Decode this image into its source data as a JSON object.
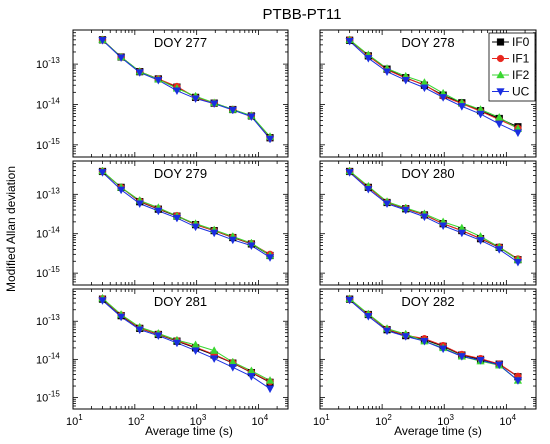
{
  "chart_data": {
    "type": "line",
    "title": "PTBB-PT11",
    "xlabel": "Average time (s)",
    "ylabel": "Modified Allan deviation",
    "xscale": "log",
    "yscale": "log",
    "xlim": [
      10,
      30000
    ],
    "ylim": [
      5e-16,
      7e-13
    ],
    "x_ticks": [
      {
        "base": "10",
        "exp": "1",
        "value": 10
      },
      {
        "base": "10",
        "exp": "2",
        "value": 100
      },
      {
        "base": "10",
        "exp": "3",
        "value": 1000
      },
      {
        "base": "10",
        "exp": "4",
        "value": 10000
      }
    ],
    "y_ticks": [
      {
        "base": "10",
        "exp": "-13",
        "value": 1e-13
      },
      {
        "base": "10",
        "exp": "-14",
        "value": 1e-14
      },
      {
        "base": "10",
        "exp": "-15",
        "value": 1e-15
      }
    ],
    "legend_position": "top-right",
    "series_styles": [
      {
        "name": "IF0",
        "color": "#000000",
        "marker": "square"
      },
      {
        "name": "IF1",
        "color": "#e8261e",
        "marker": "circle"
      },
      {
        "name": "IF2",
        "color": "#39d630",
        "marker": "triangle-up"
      },
      {
        "name": "UC",
        "color": "#1a2ee0",
        "marker": "triangle-down"
      }
    ],
    "x": [
      30,
      60,
      120,
      240,
      480,
      960,
      1920,
      3840,
      7680,
      15360
    ],
    "panels": [
      {
        "title": "DOY 277",
        "series": [
          {
            "name": "IF0",
            "values": [
              4e-13,
              1.5e-13,
              6.5e-14,
              4.3e-14,
              2.7e-14,
              1.5e-14,
              1.08e-14,
              7.5e-15,
              5.2e-15,
              1.5e-15
            ]
          },
          {
            "name": "IF1",
            "values": [
              4e-13,
              1.5e-13,
              6.5e-14,
              4.3e-14,
              2.8e-14,
              1.5e-14,
              1.08e-14,
              7.5e-15,
              5.2e-15,
              1.5e-15
            ]
          },
          {
            "name": "IF2",
            "values": [
              4e-13,
              1.5e-13,
              6.6e-14,
              4.2e-14,
              2.5e-14,
              1.6e-14,
              1.1e-14,
              7.5e-15,
              5.3e-15,
              1.6e-15
            ]
          },
          {
            "name": "UC",
            "values": [
              3.9e-13,
              1.45e-13,
              6.2e-14,
              4e-14,
              2.2e-14,
              1.4e-14,
              1.05e-14,
              7.3e-15,
              5e-15,
              1.4e-15
            ]
          }
        ]
      },
      {
        "title": "DOY 278",
        "series": [
          {
            "name": "IF0",
            "values": [
              3.9e-13,
              1.6e-13,
              7.5e-14,
              4.6e-14,
              3e-14,
              1.7e-14,
              1.1e-14,
              7e-15,
              4.5e-15,
              2.8e-15
            ]
          },
          {
            "name": "IF1",
            "values": [
              4e-13,
              1.6e-13,
              7.2e-14,
              4.5e-14,
              3.1e-14,
              1.6e-14,
              1.05e-14,
              6.8e-15,
              4.2e-15,
              2.6e-15
            ]
          },
          {
            "name": "IF2",
            "values": [
              4e-13,
              1.7e-13,
              7.8e-14,
              5e-14,
              3.5e-14,
              1.9e-14,
              1.1e-14,
              7.5e-15,
              4.8e-15,
              2.5e-15
            ]
          },
          {
            "name": "UC",
            "values": [
              3.7e-13,
              1.4e-13,
              6.5e-14,
              4e-14,
              2.6e-14,
              1.5e-14,
              9e-15,
              5.8e-15,
              3.3e-15,
              2e-15
            ]
          }
        ]
      },
      {
        "title": "DOY 279",
        "series": [
          {
            "name": "IF0",
            "values": [
              3.8e-13,
              1.5e-13,
              6.5e-14,
              4.2e-14,
              2.8e-14,
              1.7e-14,
              1.2e-14,
              8e-15,
              5.5e-15,
              2.8e-15
            ]
          },
          {
            "name": "IF1",
            "values": [
              3.8e-13,
              1.5e-13,
              6.7e-14,
              4.3e-14,
              2.9e-14,
              1.7e-14,
              1.2e-14,
              8.2e-15,
              5.6e-15,
              3e-15
            ]
          },
          {
            "name": "IF2",
            "values": [
              3.9e-13,
              1.5e-13,
              7e-14,
              4.6e-14,
              2.8e-14,
              1.8e-14,
              1.25e-14,
              8.5e-15,
              5.8e-15,
              2.8e-15
            ]
          },
          {
            "name": "UC",
            "values": [
              3.6e-13,
              1.3e-13,
              5.8e-14,
              3.8e-14,
              2.5e-14,
              1.5e-14,
              1.05e-14,
              7e-15,
              5e-15,
              2.5e-15
            ]
          }
        ]
      },
      {
        "title": "DOY 280",
        "series": [
          {
            "name": "IF0",
            "values": [
              3.8e-13,
              1.5e-13,
              6.2e-14,
              4.3e-14,
              3e-14,
              1.8e-14,
              1.2e-14,
              7.5e-15,
              4.5e-15,
              2.2e-15
            ]
          },
          {
            "name": "IF1",
            "values": [
              3.8e-13,
              1.5e-13,
              6.3e-14,
              4.4e-14,
              3e-14,
              1.8e-14,
              1.2e-14,
              7.6e-15,
              4.6e-15,
              2.3e-15
            ]
          },
          {
            "name": "IF2",
            "values": [
              3.9e-13,
              1.6e-13,
              6.5e-14,
              4.5e-14,
              3.2e-14,
              2e-14,
              1.4e-14,
              8.5e-15,
              4.6e-15,
              2.2e-15
            ]
          },
          {
            "name": "UC",
            "values": [
              3.6e-13,
              1.35e-13,
              5.8e-14,
              4e-14,
              2.7e-14,
              1.6e-14,
              1.05e-14,
              6.8e-15,
              4e-15,
              1.9e-15
            ]
          }
        ]
      },
      {
        "title": "DOY 281",
        "series": [
          {
            "name": "IF0",
            "values": [
              3.8e-13,
              1.4e-13,
              6.5e-14,
              4.5e-14,
              3e-14,
              2e-14,
              1.3e-14,
              8e-15,
              4.5e-15,
              2.5e-15
            ]
          },
          {
            "name": "IF1",
            "values": [
              3.9e-13,
              1.45e-13,
              6.6e-14,
              4.6e-14,
              3.1e-14,
              2.1e-14,
              1.35e-14,
              8.2e-15,
              4.6e-15,
              2.6e-15
            ]
          },
          {
            "name": "IF2",
            "values": [
              4e-13,
              1.5e-13,
              7e-14,
              4.8e-14,
              3.2e-14,
              2.4e-14,
              1.7e-14,
              8.5e-15,
              5e-15,
              2.8e-15
            ]
          },
          {
            "name": "UC",
            "values": [
              3.5e-13,
              1.3e-13,
              6e-14,
              4.2e-14,
              2.7e-14,
              1.7e-14,
              1.05e-14,
              6.2e-15,
              3.6e-15,
              1.7e-15
            ]
          }
        ]
      },
      {
        "title": "DOY 282",
        "series": [
          {
            "name": "IF0",
            "values": [
              3.8e-13,
              1.5e-13,
              6e-14,
              4.2e-14,
              3.3e-14,
              2.2e-14,
              1.3e-14,
              1e-14,
              7.5e-15,
              3.5e-15
            ]
          },
          {
            "name": "IF1",
            "values": [
              3.8e-13,
              1.5e-13,
              6.2e-14,
              4.3e-14,
              3.5e-14,
              2.3e-14,
              1.35e-14,
              1.05e-14,
              7.6e-15,
              3.6e-15
            ]
          },
          {
            "name": "IF2",
            "values": [
              3.9e-13,
              1.55e-13,
              6.4e-14,
              4.6e-14,
              3e-14,
              2e-14,
              1.2e-14,
              9e-15,
              7e-15,
              2.8e-15
            ]
          },
          {
            "name": "UC",
            "values": [
              3.6e-13,
              1.35e-13,
              5.6e-14,
              4e-14,
              3e-14,
              1.9e-14,
              1.2e-14,
              9.5e-15,
              7.2e-15,
              2.8e-15
            ]
          }
        ]
      }
    ]
  }
}
